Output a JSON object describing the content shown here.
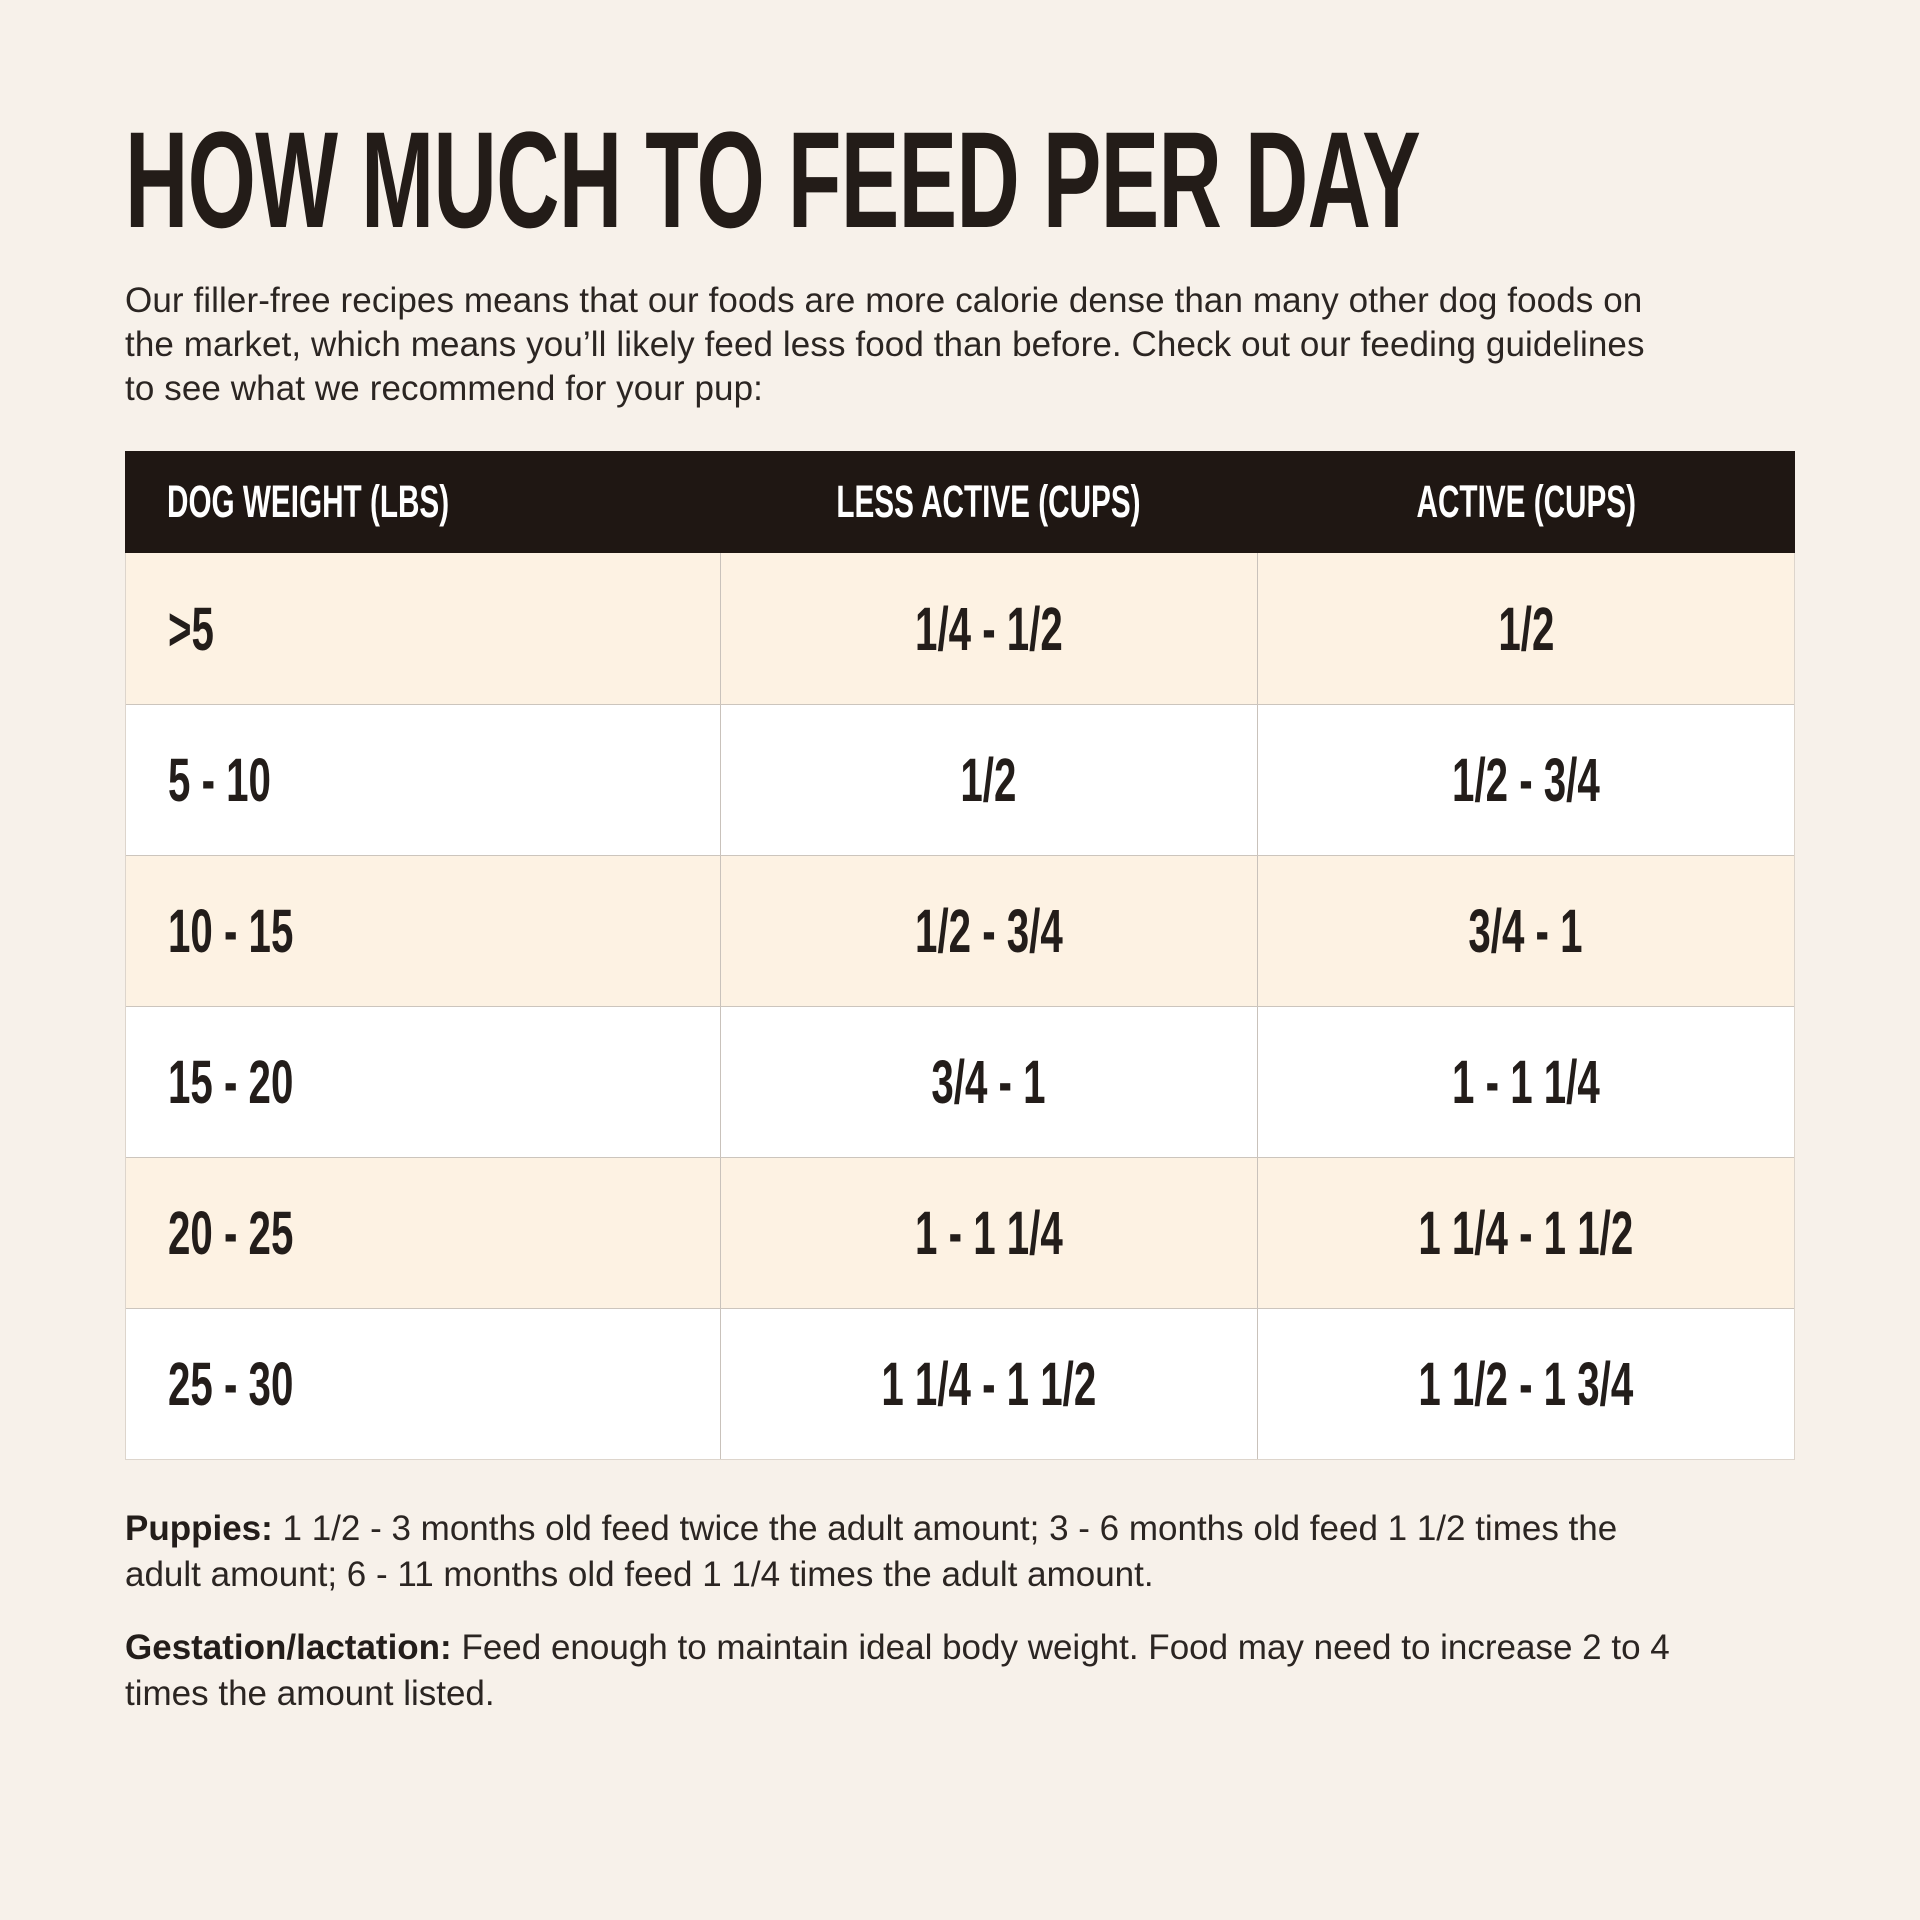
{
  "page": {
    "title": "HOW MUCH TO FEED PER DAY",
    "intro": "Our filler-free recipes means that our foods are more calorie dense than many other dog foods on the market, which means you’ll likely feed less food than before. Check out our feeding guidelines to see what we recommend for your pup:"
  },
  "table": {
    "headers": [
      "DOG WEIGHT (LBS)",
      "LESS ACTIVE (CUPS)",
      "ACTIVE (CUPS)"
    ],
    "rows": [
      {
        "weight": ">5",
        "less_active": "1/4 - 1/2",
        "active": "1/2"
      },
      {
        "weight": "5 - 10",
        "less_active": "1/2",
        "active": "1/2 - 3/4"
      },
      {
        "weight": "10 - 15",
        "less_active": "1/2 - 3/4",
        "active": "3/4 - 1"
      },
      {
        "weight": "15 - 20",
        "less_active": "3/4 - 1",
        "active": "1 - 1 1/4"
      },
      {
        "weight": "20 - 25",
        "less_active": "1 - 1 1/4",
        "active": "1 1/4 - 1 1/2"
      },
      {
        "weight": "25 - 30",
        "less_active": "1 1/4 - 1 1/2",
        "active": "1 1/2 - 1 3/4"
      }
    ]
  },
  "notes": {
    "puppies_label": "Puppies:",
    "puppies_text": "1 1/2 - 3 months old feed twice the adult amount; 3 - 6 months old feed 1 1/2 times the adult amount; 6 - 11 months old feed 1 1/4 times the adult amount.",
    "gestation_label": "Gestation/lactation:",
    "gestation_text": "Feed enough to maintain ideal body weight. Food may need to increase 2 to 4 times the amount listed."
  },
  "colors": {
    "page_background": "#f7f1ea",
    "header_background": "#1f1713",
    "row_peach": "#fdf2e3",
    "row_white": "#ffffff",
    "text": "#231d1a"
  }
}
